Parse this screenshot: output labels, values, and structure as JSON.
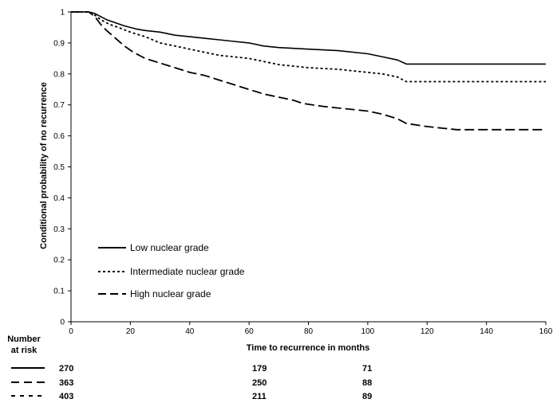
{
  "chart_data": {
    "type": "line",
    "title": "",
    "xlabel": "Time to recurrence in months",
    "ylabel": "Conditional probability of no recurrence",
    "xlim": [
      0,
      160
    ],
    "ylim": [
      0,
      1
    ],
    "x_ticks": [
      0,
      20,
      40,
      60,
      80,
      100,
      120,
      140,
      160
    ],
    "y_ticks": [
      0,
      0.1,
      0.2,
      0.3,
      0.4,
      0.5,
      0.6,
      0.7,
      0.8,
      0.9,
      1
    ],
    "grid": false,
    "legend_placement": "bottom-left",
    "series": [
      {
        "name": "Low nuclear grade",
        "style": "solid",
        "points": [
          [
            0,
            1
          ],
          [
            6,
            1
          ],
          [
            8,
            0.995
          ],
          [
            10,
            0.985
          ],
          [
            12,
            0.975
          ],
          [
            15,
            0.965
          ],
          [
            18,
            0.955
          ],
          [
            22,
            0.945
          ],
          [
            25,
            0.94
          ],
          [
            30,
            0.935
          ],
          [
            35,
            0.925
          ],
          [
            40,
            0.92
          ],
          [
            45,
            0.915
          ],
          [
            50,
            0.91
          ],
          [
            55,
            0.905
          ],
          [
            60,
            0.9
          ],
          [
            65,
            0.89
          ],
          [
            70,
            0.885
          ],
          [
            80,
            0.88
          ],
          [
            90,
            0.875
          ],
          [
            100,
            0.865
          ],
          [
            105,
            0.855
          ],
          [
            110,
            0.845
          ],
          [
            113,
            0.832
          ],
          [
            130,
            0.832
          ],
          [
            160,
            0.832
          ]
        ]
      },
      {
        "name": "Intermediate nuclear grade",
        "style": "dotted",
        "points": [
          [
            0,
            1
          ],
          [
            6,
            1
          ],
          [
            8,
            0.99
          ],
          [
            10,
            0.975
          ],
          [
            13,
            0.96
          ],
          [
            16,
            0.95
          ],
          [
            20,
            0.935
          ],
          [
            25,
            0.92
          ],
          [
            30,
            0.9
          ],
          [
            35,
            0.89
          ],
          [
            40,
            0.88
          ],
          [
            45,
            0.87
          ],
          [
            50,
            0.86
          ],
          [
            55,
            0.855
          ],
          [
            60,
            0.85
          ],
          [
            65,
            0.84
          ],
          [
            70,
            0.83
          ],
          [
            80,
            0.82
          ],
          [
            90,
            0.815
          ],
          [
            100,
            0.805
          ],
          [
            105,
            0.8
          ],
          [
            110,
            0.79
          ],
          [
            113,
            0.775
          ],
          [
            130,
            0.775
          ],
          [
            160,
            0.775
          ]
        ]
      },
      {
        "name": "High nuclear grade",
        "style": "long-dash",
        "points": [
          [
            0,
            1
          ],
          [
            6,
            1
          ],
          [
            8,
            0.985
          ],
          [
            10,
            0.96
          ],
          [
            12,
            0.94
          ],
          [
            15,
            0.915
          ],
          [
            18,
            0.89
          ],
          [
            21,
            0.87
          ],
          [
            25,
            0.85
          ],
          [
            30,
            0.835
          ],
          [
            35,
            0.82
          ],
          [
            40,
            0.805
          ],
          [
            45,
            0.795
          ],
          [
            50,
            0.78
          ],
          [
            55,
            0.765
          ],
          [
            60,
            0.75
          ],
          [
            65,
            0.735
          ],
          [
            70,
            0.725
          ],
          [
            75,
            0.715
          ],
          [
            78,
            0.705
          ],
          [
            85,
            0.695
          ],
          [
            90,
            0.69
          ],
          [
            95,
            0.685
          ],
          [
            100,
            0.68
          ],
          [
            105,
            0.67
          ],
          [
            110,
            0.655
          ],
          [
            113,
            0.64
          ],
          [
            120,
            0.63
          ],
          [
            125,
            0.625
          ],
          [
            130,
            0.62
          ],
          [
            160,
            0.62
          ]
        ]
      }
    ],
    "legend": [
      {
        "label": "Low nuclear grade",
        "style": "solid"
      },
      {
        "label": "Intermediate nuclear grade",
        "style": "dotted"
      },
      {
        "label": "High nuclear grade",
        "style": "long-dash"
      }
    ],
    "number_at_risk": {
      "label_line1": "Number",
      "label_line2": "at risk",
      "rows": [
        {
          "style": "solid",
          "values": [
            {
              "x": 0,
              "text": "270"
            },
            {
              "x": 60,
              "text": "179"
            },
            {
              "x": 100,
              "text": "71"
            }
          ]
        },
        {
          "style": "long-dash",
          "values": [
            {
              "x": 0,
              "text": "363"
            },
            {
              "x": 60,
              "text": "250"
            },
            {
              "x": 100,
              "text": "88"
            }
          ]
        },
        {
          "style": "dotted",
          "values": [
            {
              "x": 0,
              "text": "403"
            },
            {
              "x": 60,
              "text": "211"
            },
            {
              "x": 100,
              "text": "89"
            }
          ]
        }
      ]
    }
  }
}
